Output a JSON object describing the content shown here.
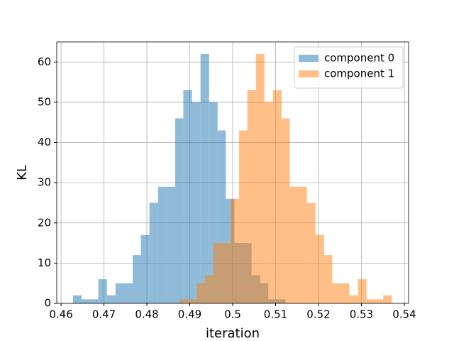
{
  "chart_data": {
    "type": "histogram",
    "x_label": "iteration",
    "y_label": "KL",
    "xlim": [
      0.459,
      0.541
    ],
    "ylim": [
      0,
      65
    ],
    "xticks": [
      0.46,
      0.47,
      0.48,
      0.49,
      0.5,
      0.51,
      0.52,
      0.53,
      0.54
    ],
    "yticks": [
      0,
      10,
      20,
      30,
      40,
      50,
      60
    ],
    "grid": true,
    "legend": "upper right",
    "opacity": 0.5,
    "series": [
      {
        "name": "component 0",
        "color": "#1f77b4",
        "bins": [
          0.4628,
          0.4648,
          0.4668,
          0.4687,
          0.4707,
          0.4727,
          0.4747,
          0.4767,
          0.4786,
          0.4806,
          0.4826,
          0.4846,
          0.4866,
          0.4885,
          0.4905,
          0.4925,
          0.4945,
          0.4965,
          0.4984,
          0.5004,
          0.5024,
          0.5044,
          0.5064,
          0.5083,
          0.5103,
          0.5123
        ],
        "values": [
          2,
          1,
          1,
          6,
          2,
          5,
          5,
          12,
          17,
          25,
          29,
          29,
          46,
          53,
          50,
          62,
          50,
          43,
          26,
          15,
          15,
          7,
          5,
          1,
          1
        ]
      },
      {
        "name": "component 1",
        "color": "#ff7f0e",
        "bins": [
          0.4876,
          0.4896,
          0.4916,
          0.4935,
          0.4955,
          0.4975,
          0.4995,
          0.5015,
          0.5034,
          0.5054,
          0.5074,
          0.5094,
          0.5114,
          0.5133,
          0.5153,
          0.5173,
          0.5193,
          0.5213,
          0.5232,
          0.5252,
          0.5272,
          0.5292,
          0.5312,
          0.5331,
          0.5351,
          0.5371
        ],
        "values": [
          1,
          1,
          5,
          7,
          15,
          15,
          26,
          43,
          53,
          62,
          50,
          53,
          46,
          29,
          29,
          25,
          17,
          12,
          5,
          5,
          2,
          6,
          1,
          1,
          2
        ]
      }
    ]
  }
}
